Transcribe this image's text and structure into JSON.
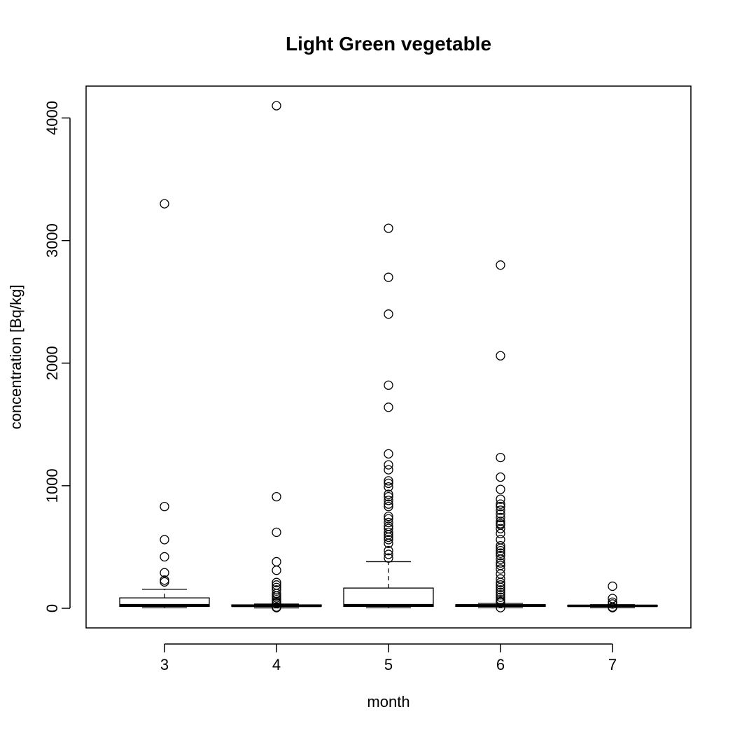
{
  "chart_data": {
    "type": "boxplot",
    "title": "Light Green vegetable",
    "xlabel": "month",
    "ylabel": "concentration [Bq/kg]",
    "categories": [
      "3",
      "4",
      "5",
      "6",
      "7"
    ],
    "ylim": [
      -160,
      4260
    ],
    "yticks": [
      0,
      1000,
      2000,
      3000,
      4000
    ],
    "grid": false,
    "boxes": [
      {
        "category": "3",
        "whisker_low": 5,
        "q1": 15,
        "median": 25,
        "q3": 85,
        "whisker_high": 155,
        "outliers": [
          3300,
          830,
          560,
          420,
          290,
          230,
          215
        ]
      },
      {
        "category": "4",
        "whisker_low": 3,
        "q1": 15,
        "median": 20,
        "q3": 28,
        "whisker_high": 35,
        "outliers": [
          4100,
          910,
          620,
          380,
          310,
          210,
          190,
          170,
          150,
          120,
          100,
          85,
          70,
          55,
          45,
          40,
          10,
          5
        ]
      },
      {
        "category": "5",
        "whisker_low": 5,
        "q1": 15,
        "median": 25,
        "q3": 165,
        "whisker_high": 380,
        "outliers": [
          3100,
          2700,
          2400,
          1820,
          1640,
          1260,
          1170,
          1130,
          1040,
          1020,
          990,
          930,
          910,
          880,
          850,
          830,
          750,
          730,
          700,
          670,
          650,
          620,
          600,
          580,
          560,
          530,
          470,
          440,
          410
        ]
      },
      {
        "category": "6",
        "whisker_low": 5,
        "q1": 15,
        "median": 22,
        "q3": 30,
        "whisker_high": 40,
        "outliers": [
          2800,
          2060,
          1230,
          1070,
          970,
          890,
          850,
          830,
          800,
          770,
          740,
          710,
          690,
          680,
          650,
          610,
          560,
          510,
          490,
          470,
          450,
          430,
          400,
          370,
          350,
          320,
          280,
          240,
          210,
          190,
          170,
          150,
          130,
          110,
          90,
          70,
          55,
          45,
          5
        ]
      },
      {
        "category": "7",
        "whisker_low": 5,
        "q1": 15,
        "median": 20,
        "q3": 25,
        "whisker_high": 30,
        "outliers": [
          180,
          80,
          50,
          35,
          10,
          5
        ]
      }
    ]
  }
}
